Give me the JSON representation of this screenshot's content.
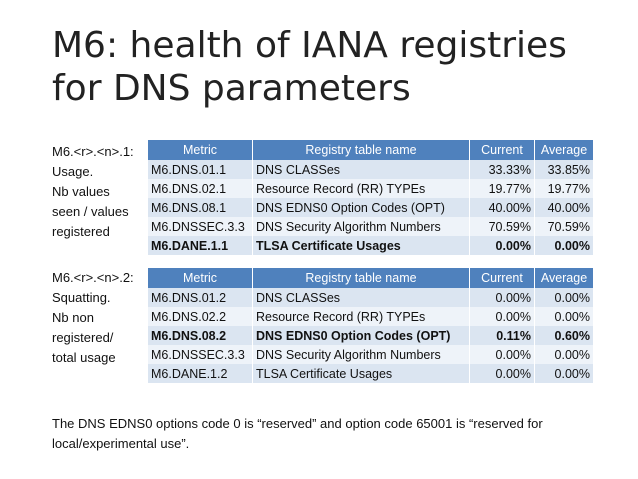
{
  "title": "M6: health of IANA registries for DNS parameters",
  "usage": {
    "side_lines": [
      "M6.<r>.<n>.1:",
      "Usage.",
      "Nb values",
      "seen / values",
      "registered"
    ],
    "headers": [
      "Metric",
      "Registry table name",
      "Current",
      "Average"
    ],
    "rows": [
      {
        "metric": "M6.DNS.01.1",
        "name": "DNS CLASSes",
        "current": "33.33%",
        "average": "33.85%",
        "bold": false
      },
      {
        "metric": "M6.DNS.02.1",
        "name": "Resource Record (RR) TYPEs",
        "current": "19.77%",
        "average": "19.77%",
        "bold": false
      },
      {
        "metric": "M6.DNS.08.1",
        "name": "DNS EDNS0 Option Codes (OPT)",
        "current": "40.00%",
        "average": "40.00%",
        "bold": false
      },
      {
        "metric": "M6.DNSSEC.3.3",
        "name": "DNS Security Algorithm Numbers",
        "current": "70.59%",
        "average": "70.59%",
        "bold": false
      },
      {
        "metric": "M6.DANE.1.1",
        "name": "TLSA Certificate Usages",
        "current": "0.00%",
        "average": "0.00%",
        "bold": true
      }
    ]
  },
  "squatting": {
    "side_lines": [
      "M6.<r>.<n>.2:",
      "Squatting.",
      "Nb non",
      "registered/",
      "total usage"
    ],
    "headers": [
      "Metric",
      "Registry table name",
      "Current",
      "Average"
    ],
    "rows": [
      {
        "metric": "M6.DNS.01.2",
        "name": "DNS CLASSes",
        "current": "0.00%",
        "average": "0.00%",
        "bold": false
      },
      {
        "metric": "M6.DNS.02.2",
        "name": "Resource Record (RR) TYPEs",
        "current": "0.00%",
        "average": "0.00%",
        "bold": false
      },
      {
        "metric": "M6.DNS.08.2",
        "name": "DNS EDNS0 Option Codes (OPT)",
        "current": "0.11%",
        "average": "0.60%",
        "bold": true
      },
      {
        "metric": "M6.DNSSEC.3.3",
        "name": "DNS Security Algorithm Numbers",
        "current": "0.00%",
        "average": "0.00%",
        "bold": false
      },
      {
        "metric": "M6.DANE.1.2",
        "name": "TLSA Certificate Usages",
        "current": "0.00%",
        "average": "0.00%",
        "bold": false
      }
    ]
  },
  "note": "The DNS EDNS0 options code 0  is “reserved” and option code 65001 is “reserved for local/experimental use”."
}
